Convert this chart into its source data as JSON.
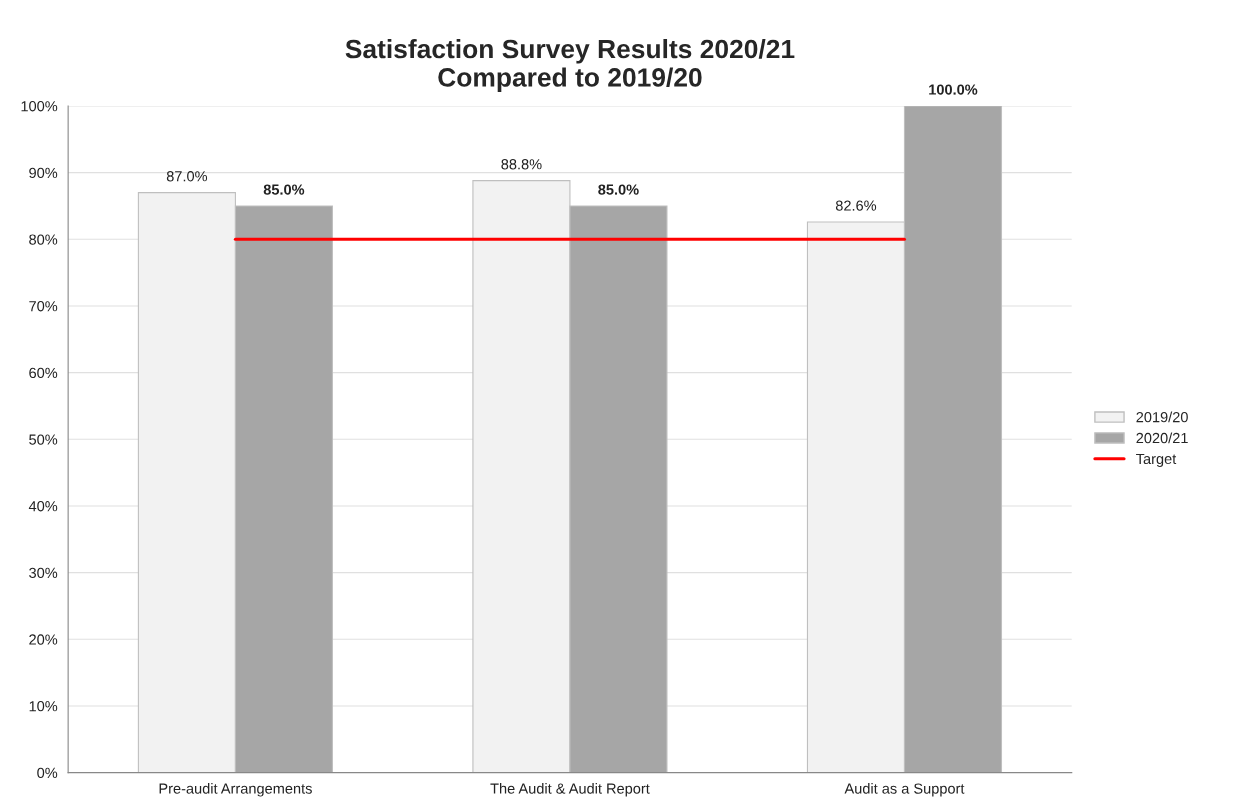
{
  "chart_data": {
    "type": "bar",
    "title": "Satisfaction Survey Results 2020/21\nCompared to 2019/20",
    "categories": [
      "Pre-audit Arrangements",
      "The Audit & Audit Report",
      "Audit as a Support"
    ],
    "series": [
      {
        "name": "2019/20",
        "color": "#f2f2f2",
        "values": [
          87.0,
          88.8,
          82.6
        ],
        "value_labels": [
          "87.0%",
          "88.8%",
          "82.6%"
        ]
      },
      {
        "name": "2020/21",
        "color": "#a6a6a6",
        "values": [
          85.0,
          85.0,
          100.0
        ],
        "value_labels": [
          "85.0%",
          "85.0%",
          "100.0%"
        ]
      },
      {
        "name": "Target",
        "type": "line",
        "color": "#ff0000",
        "values": [
          80,
          80,
          80
        ]
      }
    ],
    "ylim": [
      0,
      100
    ],
    "yticks": [
      {
        "value": 0,
        "label": "0%"
      },
      {
        "value": 10,
        "label": "10%"
      },
      {
        "value": 20,
        "label": "20%"
      },
      {
        "value": 30,
        "label": "30%"
      },
      {
        "value": 40,
        "label": "40%"
      },
      {
        "value": 50,
        "label": "50%"
      },
      {
        "value": 60,
        "label": "60%"
      },
      {
        "value": 70,
        "label": "70%"
      },
      {
        "value": 80,
        "label": "80%"
      },
      {
        "value": 90,
        "label": "90%"
      },
      {
        "value": 100,
        "label": "100%"
      }
    ],
    "grid": "y",
    "legend": "right"
  }
}
